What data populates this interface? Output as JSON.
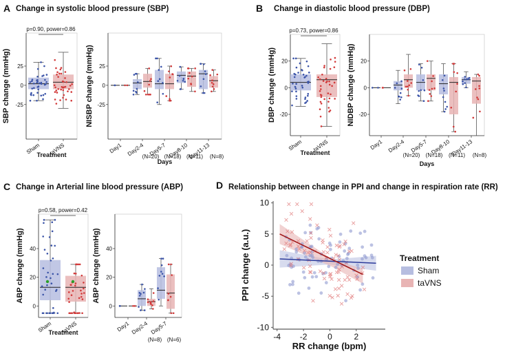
{
  "panels": {
    "A": {
      "letter": "A",
      "title": "Change in systolic blood pressure (SBP)"
    },
    "B": {
      "letter": "B",
      "title": "Change in diastolic blood pressure (DBP)"
    },
    "C": {
      "letter": "C",
      "title": "Change in Arterial line blood pressure (ABP)"
    },
    "D": {
      "letter": "D",
      "title": "Relationship between change in PPI and change in respiration rate (RR)"
    }
  },
  "legend": {
    "title": "Treatment",
    "items": [
      {
        "label": "Sham",
        "color": "#b6bde0"
      },
      {
        "label": "taVNS",
        "color": "#e8b4b4"
      }
    ]
  },
  "colors": {
    "sham_box": "#b6bde0",
    "tavns_box": "#e8b4b4",
    "sham_point": "#3b54a8",
    "tavns_point": "#d23a3a",
    "sham_line": "#2b3a9a",
    "tavns_line": "#a01515",
    "green": "#2aa02a"
  },
  "chart_data": [
    {
      "id": "A1",
      "type": "box",
      "ylabel": "SBP change (mmHg)",
      "xlabel": "Treatment",
      "categories": [
        "Sham",
        "taVNS"
      ],
      "yticks": [
        -25,
        0,
        25
      ],
      "ylim": [
        -70,
        68
      ],
      "annotation": "p=0.90, power=0.86",
      "boxes": [
        {
          "group": "sham",
          "q1": -5,
          "median": 2,
          "q3": 10,
          "whisker_low": -20,
          "whisker_high": 30
        },
        {
          "group": "tavns",
          "q1": -5,
          "median": 4,
          "q3": 14,
          "whisker_low": -30,
          "whisker_high": 43
        }
      ]
    },
    {
      "id": "A2",
      "type": "box",
      "ylabel": "NISBP change (mmHg)",
      "xlabel": "Days",
      "categories": [
        "Day1",
        "Day2-4\n(N=20)",
        "Day5-7\n(N=18)",
        "Day8-10\n(N=11)",
        "Day11-13\n(N=8)"
      ],
      "yticks": [
        -25,
        0,
        25
      ],
      "ylim": [
        -70,
        68
      ],
      "boxes": [
        {
          "cat": 0,
          "group": "sham",
          "q1": 0,
          "median": 0,
          "q3": 0,
          "whisker_low": 0,
          "whisker_high": 0
        },
        {
          "cat": 0,
          "group": "tavns",
          "q1": 0,
          "median": 0,
          "q3": 0,
          "whisker_low": 0,
          "whisker_high": 0
        },
        {
          "cat": 1,
          "group": "sham",
          "q1": -5,
          "median": 3,
          "q3": 8,
          "whisker_low": -12,
          "whisker_high": 15
        },
        {
          "cat": 1,
          "group": "tavns",
          "q1": -3,
          "median": 5,
          "q3": 15,
          "whisker_low": -12,
          "whisker_high": 22
        },
        {
          "cat": 2,
          "group": "sham",
          "q1": -5,
          "median": 2,
          "q3": 20,
          "whisker_low": -25,
          "whisker_high": 35
        },
        {
          "cat": 2,
          "group": "tavns",
          "q1": -5,
          "median": 2,
          "q3": 15,
          "whisker_low": -20,
          "whisker_high": 25
        },
        {
          "cat": 3,
          "group": "sham",
          "q1": 3,
          "median": 13,
          "q3": 18,
          "whisker_low": -5,
          "whisker_high": 24
        },
        {
          "cat": 3,
          "group": "tavns",
          "q1": -2,
          "median": 12,
          "q3": 18,
          "whisker_low": -8,
          "whisker_high": 22
        },
        {
          "cat": 4,
          "group": "sham",
          "q1": -5,
          "median": 15,
          "q3": 20,
          "whisker_low": -10,
          "whisker_high": 28
        },
        {
          "cat": 4,
          "group": "tavns",
          "q1": -3,
          "median": 6,
          "q3": 12,
          "whisker_low": -8,
          "whisker_high": 20
        }
      ]
    },
    {
      "id": "B1",
      "type": "box",
      "ylabel": "DBP change (mmHg)",
      "xlabel": "Treatment",
      "categories": [
        "Sham",
        "taVNS"
      ],
      "yticks": [
        -20,
        0,
        20
      ],
      "ylim": [
        -36,
        40
      ],
      "annotation": "p=0.73, power=0.86",
      "boxes": [
        {
          "group": "sham",
          "q1": -2,
          "median": 4,
          "q3": 10,
          "whisker_low": -14,
          "whisker_high": 22
        },
        {
          "group": "tavns",
          "q1": -7,
          "median": 6,
          "q3": 10,
          "whisker_low": -29,
          "whisker_high": 33
        }
      ]
    },
    {
      "id": "B2",
      "type": "box",
      "ylabel": "NIDBP change (mmHg)",
      "xlabel": "Days",
      "categories": [
        "Day1",
        "Day2-4\n(N=20)",
        "Day5-7\n(N=18)",
        "Day8-10\n(N=11)",
        "Day11-13\n(N=8)"
      ],
      "yticks": [
        -20,
        0,
        20
      ],
      "ylim": [
        -36,
        40
      ],
      "boxes": [
        {
          "cat": 0,
          "group": "sham",
          "q1": 0,
          "median": 0,
          "q3": 0,
          "whisker_low": 0,
          "whisker_high": 0
        },
        {
          "cat": 0,
          "group": "tavns",
          "q1": 0,
          "median": 0,
          "q3": 0,
          "whisker_low": 0,
          "whisker_high": 0
        },
        {
          "cat": 1,
          "group": "sham",
          "q1": -2,
          "median": 2,
          "q3": 5,
          "whisker_low": -12,
          "whisker_high": 13
        },
        {
          "cat": 1,
          "group": "tavns",
          "q1": 0,
          "median": 6,
          "q3": 10,
          "whisker_low": -6,
          "whisker_high": 25
        },
        {
          "cat": 2,
          "group": "sham",
          "q1": -2,
          "median": 4,
          "q3": 10,
          "whisker_low": -10,
          "whisker_high": 18
        },
        {
          "cat": 2,
          "group": "tavns",
          "q1": -2,
          "median": 7,
          "q3": 10,
          "whisker_low": -10,
          "whisker_high": 20
        },
        {
          "cat": 3,
          "group": "sham",
          "q1": -5,
          "median": 3,
          "q3": 10,
          "whisker_low": -18,
          "whisker_high": 18
        },
        {
          "cat": 3,
          "group": "tavns",
          "q1": -20,
          "median": 4,
          "q3": 8,
          "whisker_low": -33,
          "whisker_high": 18
        },
        {
          "cat": 4,
          "group": "sham",
          "q1": 3,
          "median": 6,
          "q3": 8,
          "whisker_low": 0,
          "whisker_high": 12
        },
        {
          "cat": 4,
          "group": "tavns",
          "q1": -12,
          "median": 5,
          "q3": 8,
          "whisker_low": -36,
          "whisker_high": 10
        }
      ]
    },
    {
      "id": "C1",
      "type": "box",
      "ylabel": "ABP change (mmHg)",
      "xlabel": "Treatment",
      "categories": [
        "Sham",
        "taVNS"
      ],
      "yticks": [
        0,
        20,
        40
      ],
      "ylim": [
        -8,
        64
      ],
      "annotation": "p=0.58, power=0.42",
      "boxes": [
        {
          "group": "sham",
          "q1": 4,
          "median": 13,
          "q3": 32,
          "whisker_low": -5,
          "whisker_high": 60
        },
        {
          "group": "tavns",
          "q1": 3,
          "median": 13,
          "q3": 21,
          "whisker_low": -5,
          "whisker_high": 29
        }
      ]
    },
    {
      "id": "C2",
      "type": "box",
      "ylabel": "ABP change (mmHg)",
      "xlabel": "",
      "categories": [
        "Day1",
        "Day2-4\n(N=8)",
        "Day5-7\n(N=6)"
      ],
      "yticks": [
        0,
        20,
        40
      ],
      "ylim": [
        -8,
        64
      ],
      "boxes": [
        {
          "cat": 0,
          "group": "sham",
          "q1": 0,
          "median": 0,
          "q3": 0,
          "whisker_low": 0,
          "whisker_high": 0
        },
        {
          "cat": 0,
          "group": "tavns",
          "q1": 0,
          "median": 0,
          "q3": 0,
          "whisker_low": 0,
          "whisker_high": 0
        },
        {
          "cat": 1,
          "group": "sham",
          "q1": 0,
          "median": 5,
          "q3": 11,
          "whisker_low": -3,
          "whisker_high": 15
        },
        {
          "cat": 1,
          "group": "tavns",
          "q1": 0,
          "median": 3,
          "q3": 5,
          "whisker_low": -2,
          "whisker_high": 12
        },
        {
          "cat": 2,
          "group": "sham",
          "q1": 5,
          "median": 11,
          "q3": 27,
          "whisker_low": 0,
          "whisker_high": 33
        },
        {
          "cat": 2,
          "group": "tavns",
          "q1": -2,
          "median": 9,
          "q3": 22,
          "whisker_low": -5,
          "whisker_high": 29
        }
      ]
    },
    {
      "id": "D",
      "type": "scatter",
      "xlabel": "RR change (bpm)",
      "ylabel": "PPI change (a.u.)",
      "xlim": [
        -4.3,
        4.2
      ],
      "ylim": [
        -10.3,
        10.3
      ],
      "xticks": [
        -4,
        -2,
        0,
        2
      ],
      "yticks": [
        -10,
        -5,
        0,
        5,
        10
      ],
      "series": [
        {
          "name": "Sham",
          "marker": "circle",
          "fit": {
            "x0": -3.8,
            "y0": 1.0,
            "x1": 3.5,
            "y1": 0.3
          }
        },
        {
          "name": "taVNS",
          "marker": "x",
          "fit": {
            "x0": -3.8,
            "y0": 5.0,
            "x1": 2.5,
            "y1": -1.5
          }
        }
      ]
    }
  ]
}
